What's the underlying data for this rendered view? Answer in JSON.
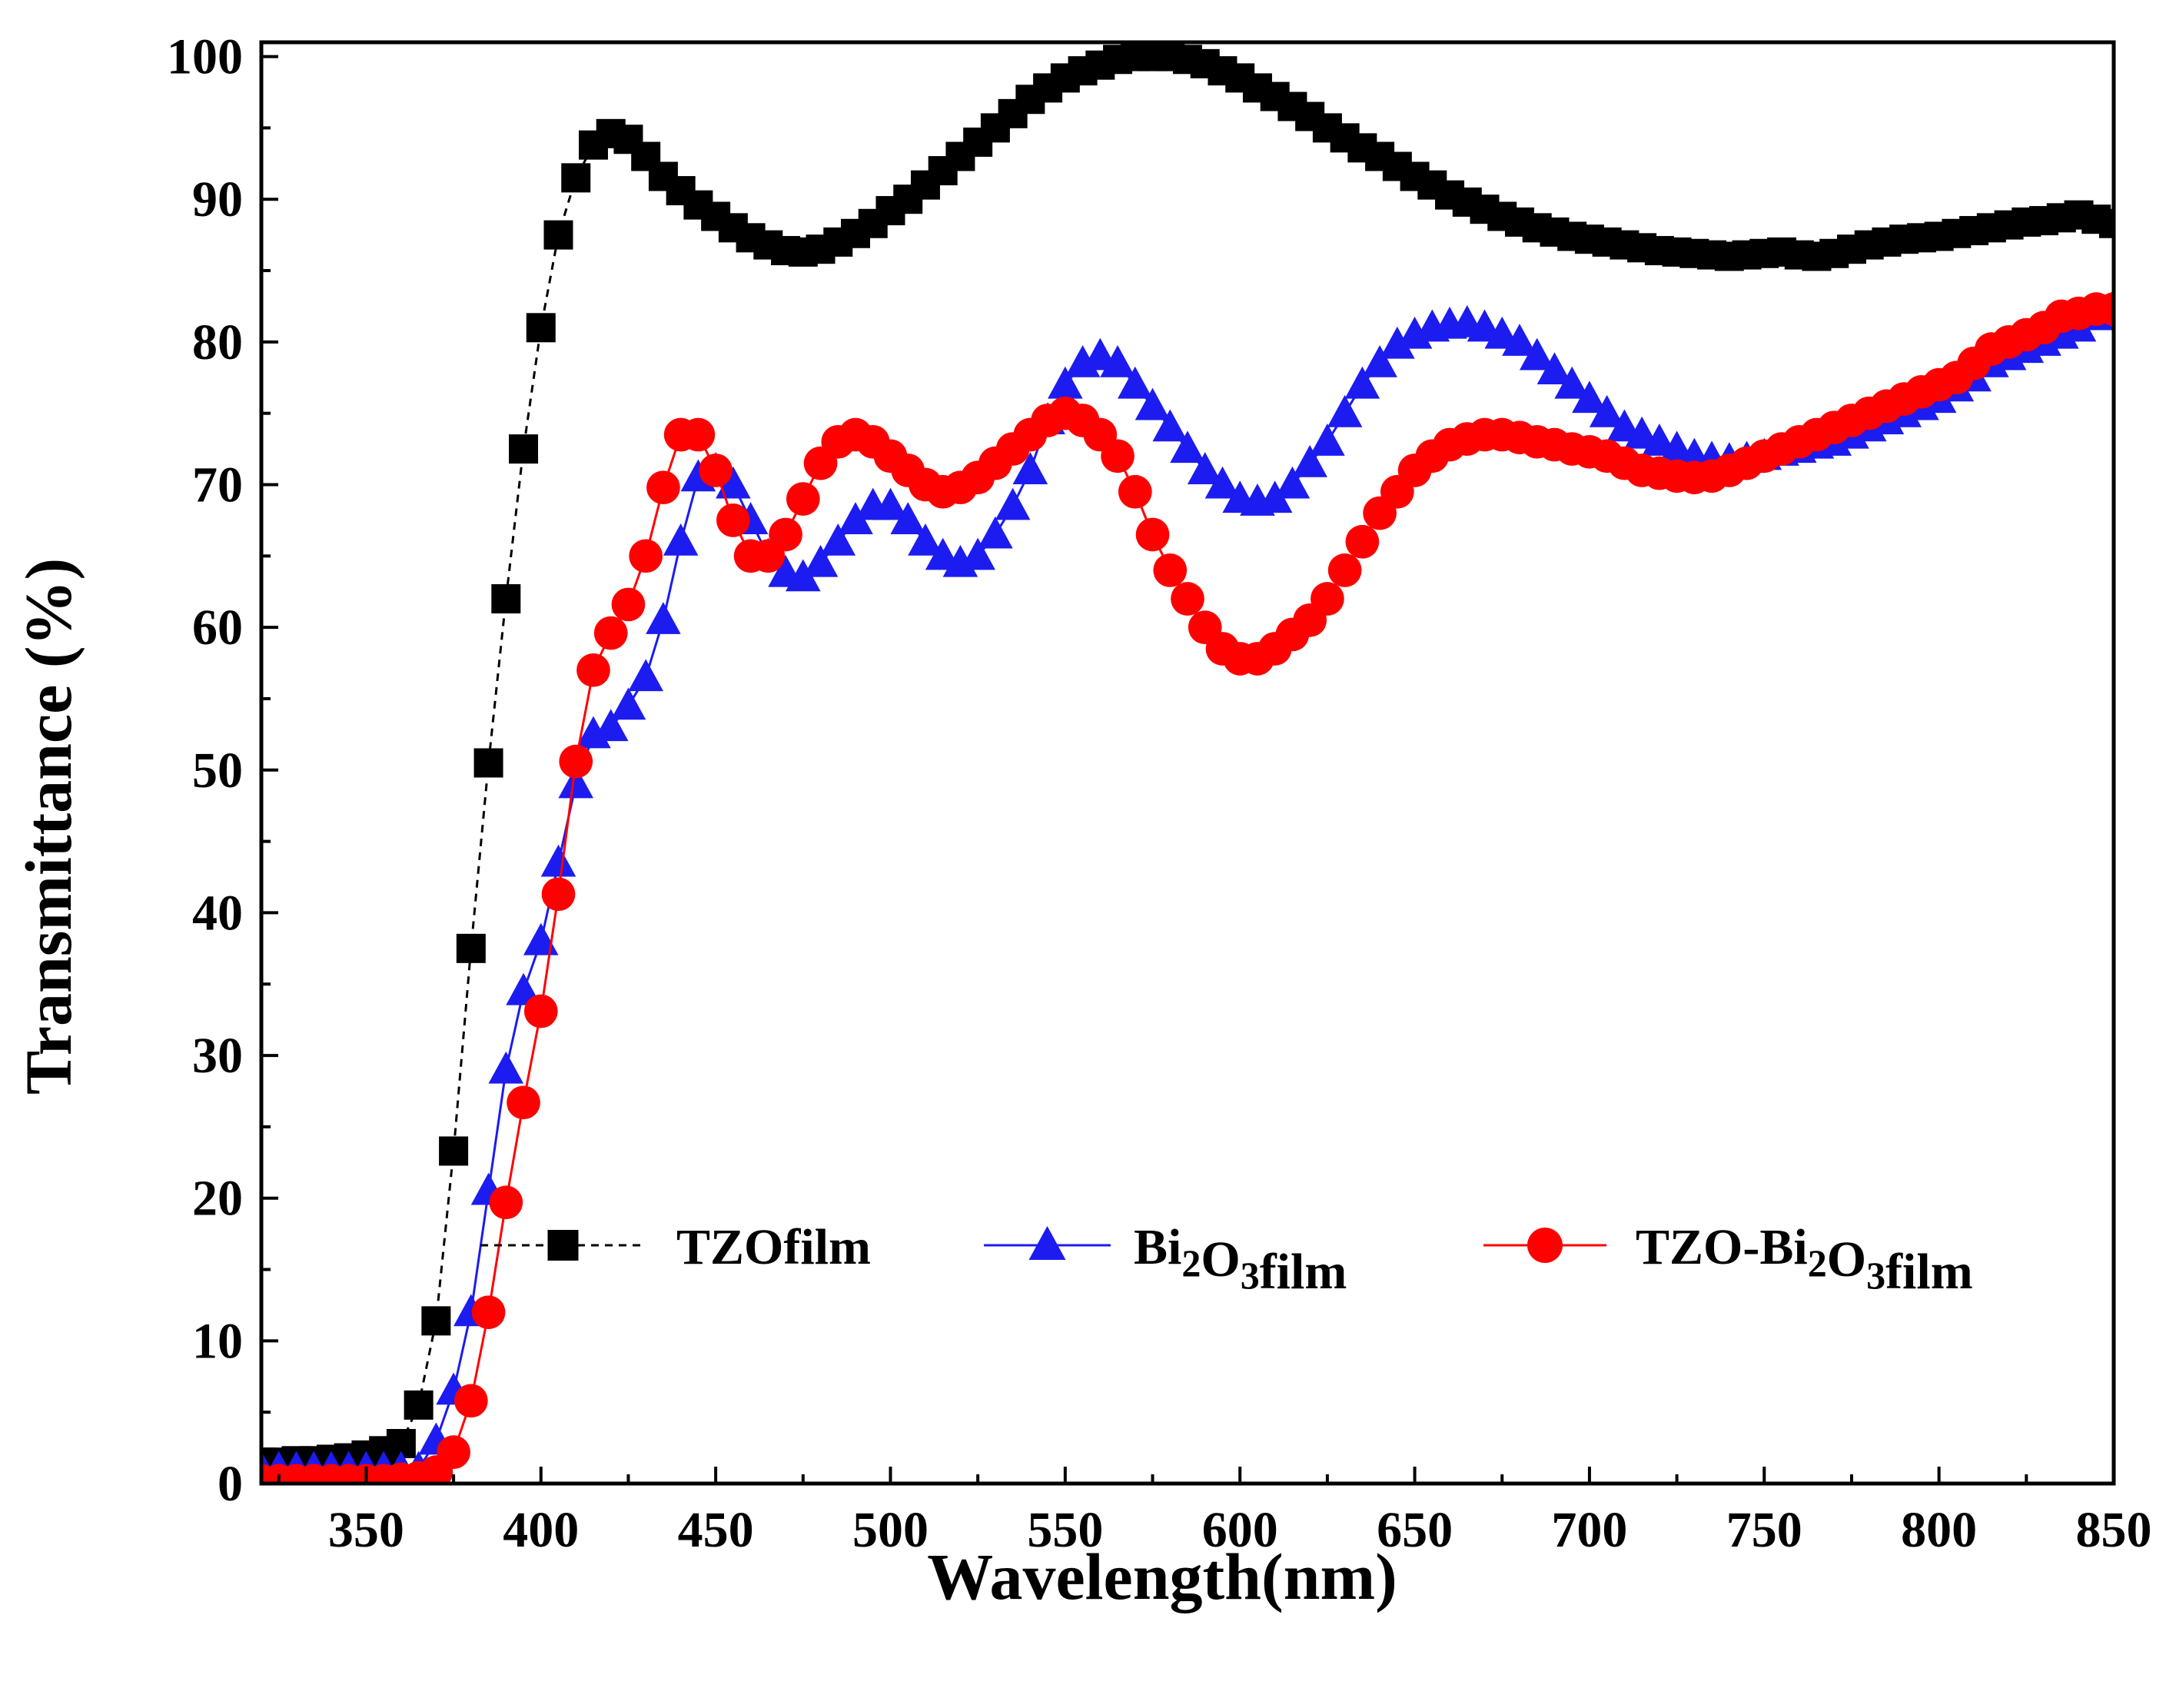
{
  "chart_data": {
    "type": "line",
    "title": "",
    "xlabel": "Wavelength(nm)",
    "ylabel": "Transmittance (%)",
    "xlim": [
      320,
      850
    ],
    "ylim": [
      0,
      101
    ],
    "xticks": [
      350,
      400,
      450,
      500,
      550,
      600,
      650,
      700,
      750,
      800,
      850
    ],
    "yticks": [
      0,
      10,
      20,
      30,
      40,
      50,
      60,
      70,
      80,
      90,
      100
    ],
    "grid": false,
    "legend_position": "lower-center",
    "series": [
      {
        "name": "TZO film",
        "legend_parts": [
          "TZOfilm"
        ],
        "color": "#000000",
        "marker": "square",
        "line_style": "dashed",
        "x": [
          320,
          325,
          330,
          335,
          340,
          345,
          350,
          355,
          360,
          365,
          370,
          375,
          380,
          385,
          390,
          395,
          400,
          405,
          410,
          415,
          420,
          425,
          430,
          435,
          440,
          445,
          450,
          455,
          460,
          465,
          470,
          475,
          480,
          485,
          490,
          495,
          500,
          505,
          510,
          515,
          520,
          525,
          530,
          535,
          540,
          545,
          550,
          555,
          560,
          565,
          570,
          575,
          580,
          585,
          590,
          595,
          600,
          605,
          610,
          615,
          620,
          625,
          630,
          635,
          640,
          645,
          650,
          655,
          660,
          665,
          670,
          675,
          680,
          685,
          690,
          695,
          700,
          705,
          710,
          715,
          720,
          725,
          730,
          735,
          740,
          745,
          750,
          755,
          760,
          765,
          770,
          775,
          780,
          785,
          790,
          795,
          800,
          805,
          810,
          815,
          820,
          825,
          830,
          835,
          840,
          845,
          850
        ],
        "y": [
          1.5,
          1.5,
          1.6,
          1.6,
          1.7,
          1.8,
          2.0,
          2.3,
          2.8,
          5.5,
          11.4,
          23.3,
          37.5,
          50.5,
          62.0,
          72.5,
          81.0,
          87.5,
          91.5,
          93.8,
          94.6,
          94.2,
          93.0,
          91.6,
          90.6,
          89.6,
          88.8,
          88.0,
          87.3,
          86.8,
          86.4,
          86.3,
          86.5,
          87.0,
          87.6,
          88.3,
          89.2,
          90.0,
          91.0,
          92.0,
          93.0,
          94.0,
          95.0,
          96.0,
          97.0,
          97.8,
          98.5,
          99.0,
          99.4,
          99.8,
          100.0,
          100.0,
          100.0,
          99.8,
          99.5,
          99.0,
          98.5,
          97.8,
          97.2,
          96.5,
          95.8,
          95.0,
          94.3,
          93.6,
          93.0,
          92.3,
          91.6,
          91.0,
          90.3,
          89.8,
          89.3,
          88.8,
          88.4,
          88.0,
          87.7,
          87.4,
          87.2,
          87.0,
          86.8,
          86.6,
          86.4,
          86.3,
          86.2,
          86.1,
          86.0,
          86.1,
          86.2,
          86.3,
          86.1,
          86.0,
          86.2,
          86.5,
          86.8,
          87.0,
          87.2,
          87.3,
          87.4,
          87.6,
          87.8,
          88.0,
          88.2,
          88.4,
          88.5,
          88.7,
          88.9,
          88.6,
          88.3
        ]
      },
      {
        "name": "Bi2O3 film",
        "legend_parts": [
          "Bi",
          "2",
          "O",
          "3",
          "film"
        ],
        "color": "#1c1cf0",
        "marker": "triangle",
        "line_style": "solid",
        "x": [
          320,
          325,
          330,
          335,
          340,
          345,
          350,
          355,
          360,
          365,
          370,
          375,
          380,
          385,
          390,
          395,
          400,
          405,
          410,
          415,
          420,
          425,
          430,
          435,
          440,
          445,
          450,
          455,
          460,
          465,
          470,
          475,
          480,
          485,
          490,
          495,
          500,
          505,
          510,
          515,
          520,
          525,
          530,
          535,
          540,
          545,
          550,
          555,
          560,
          565,
          570,
          575,
          580,
          585,
          590,
          595,
          600,
          605,
          610,
          615,
          620,
          625,
          630,
          635,
          640,
          645,
          650,
          655,
          660,
          665,
          670,
          675,
          680,
          685,
          690,
          695,
          700,
          705,
          710,
          715,
          720,
          725,
          730,
          735,
          740,
          745,
          750,
          755,
          760,
          765,
          770,
          775,
          780,
          785,
          790,
          795,
          800,
          805,
          810,
          815,
          820,
          825,
          830,
          835,
          840,
          845,
          850
        ],
        "y": [
          1.0,
          1.0,
          1.0,
          1.0,
          1.0,
          1.0,
          1.0,
          1.0,
          1.0,
          1.0,
          3.0,
          6.5,
          12.0,
          20.5,
          29.0,
          34.5,
          38.0,
          43.5,
          49.0,
          52.5,
          53.0,
          54.5,
          56.5,
          60.5,
          66.0,
          70.5,
          71.0,
          70.0,
          67.5,
          65.0,
          63.8,
          63.5,
          64.5,
          66.0,
          67.5,
          68.5,
          68.5,
          67.5,
          66.0,
          65.0,
          64.5,
          65.0,
          66.5,
          68.5,
          71.0,
          74.5,
          77.0,
          78.5,
          79.0,
          78.5,
          77.0,
          75.5,
          74.0,
          72.5,
          71.0,
          70.0,
          69.0,
          68.8,
          69.0,
          70.0,
          71.5,
          73.0,
          75.0,
          77.0,
          78.5,
          79.8,
          80.5,
          81.0,
          81.2,
          81.3,
          81.0,
          80.5,
          80.0,
          79.0,
          78.0,
          77.0,
          76.0,
          75.0,
          74.0,
          73.5,
          73.0,
          72.5,
          72.0,
          71.8,
          71.7,
          71.8,
          72.0,
          72.3,
          72.5,
          72.8,
          73.0,
          73.5,
          74.0,
          74.5,
          75.0,
          75.5,
          76.0,
          76.8,
          77.5,
          78.5,
          79.0,
          79.5,
          80.0,
          80.5,
          81.0,
          81.8,
          82.5
        ]
      },
      {
        "name": "TZO-Bi2O3 film",
        "legend_parts": [
          "TZO-Bi",
          "2",
          "O",
          "3",
          "film"
        ],
        "color": "#ff0000",
        "marker": "circle",
        "line_style": "solid",
        "x": [
          320,
          325,
          330,
          335,
          340,
          345,
          350,
          355,
          360,
          365,
          370,
          375,
          380,
          385,
          390,
          395,
          400,
          405,
          410,
          415,
          420,
          425,
          430,
          435,
          440,
          445,
          450,
          455,
          460,
          465,
          470,
          475,
          480,
          485,
          490,
          495,
          500,
          505,
          510,
          515,
          520,
          525,
          530,
          535,
          540,
          545,
          550,
          555,
          560,
          565,
          570,
          575,
          580,
          585,
          590,
          595,
          600,
          605,
          610,
          615,
          620,
          625,
          630,
          635,
          640,
          645,
          650,
          655,
          660,
          665,
          670,
          675,
          680,
          685,
          690,
          695,
          700,
          705,
          710,
          715,
          720,
          725,
          730,
          735,
          740,
          745,
          750,
          755,
          760,
          765,
          770,
          775,
          780,
          785,
          790,
          795,
          800,
          805,
          810,
          815,
          820,
          825,
          830,
          835,
          840,
          845,
          850
        ],
        "y": [
          0.2,
          0.2,
          0.2,
          0.2,
          0.2,
          0.2,
          0.2,
          0.2,
          0.3,
          0.4,
          0.8,
          2.2,
          5.8,
          12.0,
          19.7,
          26.7,
          33.1,
          41.3,
          50.6,
          57.0,
          59.6,
          61.6,
          65.0,
          69.8,
          73.5,
          73.5,
          71.0,
          67.5,
          65.0,
          65.0,
          66.5,
          69.0,
          71.5,
          73.0,
          73.5,
          73.0,
          72.0,
          71.0,
          70.0,
          69.5,
          69.8,
          70.5,
          71.5,
          72.5,
          73.5,
          74.5,
          75.0,
          74.5,
          73.5,
          72.0,
          69.5,
          66.5,
          64.0,
          62.0,
          60.0,
          58.5,
          57.8,
          57.8,
          58.5,
          59.5,
          60.5,
          62.0,
          64.0,
          66.0,
          68.0,
          69.5,
          71.0,
          72.0,
          72.8,
          73.2,
          73.5,
          73.5,
          73.3,
          73.0,
          72.8,
          72.5,
          72.3,
          72.0,
          71.5,
          71.0,
          70.8,
          70.6,
          70.5,
          70.6,
          71.0,
          71.5,
          72.0,
          72.5,
          73.0,
          73.5,
          74.0,
          74.5,
          75.0,
          75.5,
          76.0,
          76.5,
          77.0,
          77.5,
          78.5,
          79.5,
          80.0,
          80.5,
          81.0,
          81.8,
          82.0,
          82.3,
          82.3
        ]
      }
    ]
  }
}
